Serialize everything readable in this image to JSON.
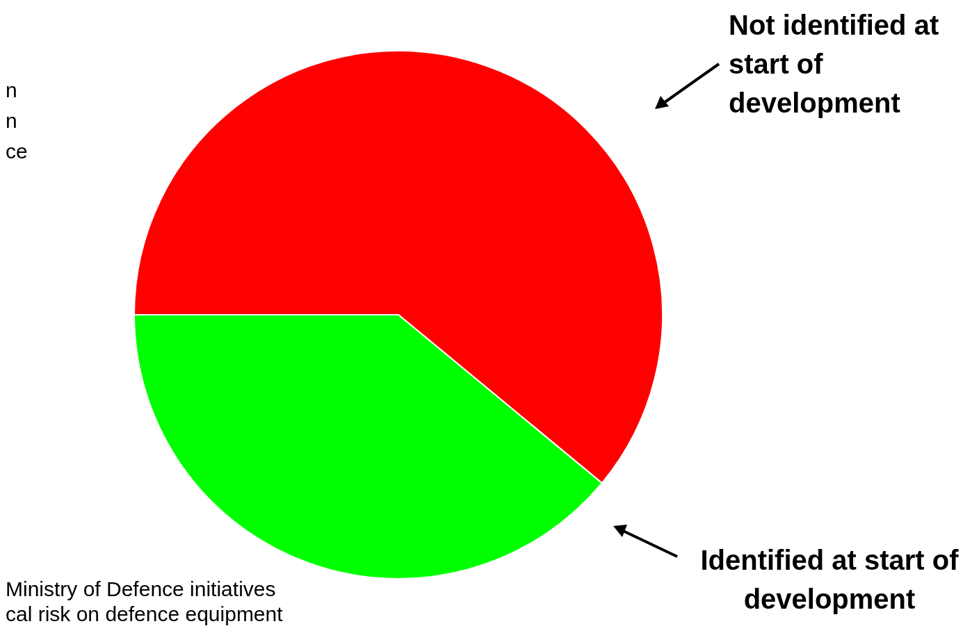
{
  "chart_data": {
    "type": "pie",
    "categories": [
      "Not identified at start of development",
      "Identified at start of development"
    ],
    "values": [
      61,
      39
    ],
    "colors": [
      "#ff0000",
      "#00ff00"
    ],
    "annotations": [
      "n\nn\nce",
      "Ministry of Defence initiatives\ncal risk on defence equipment"
    ]
  }
}
